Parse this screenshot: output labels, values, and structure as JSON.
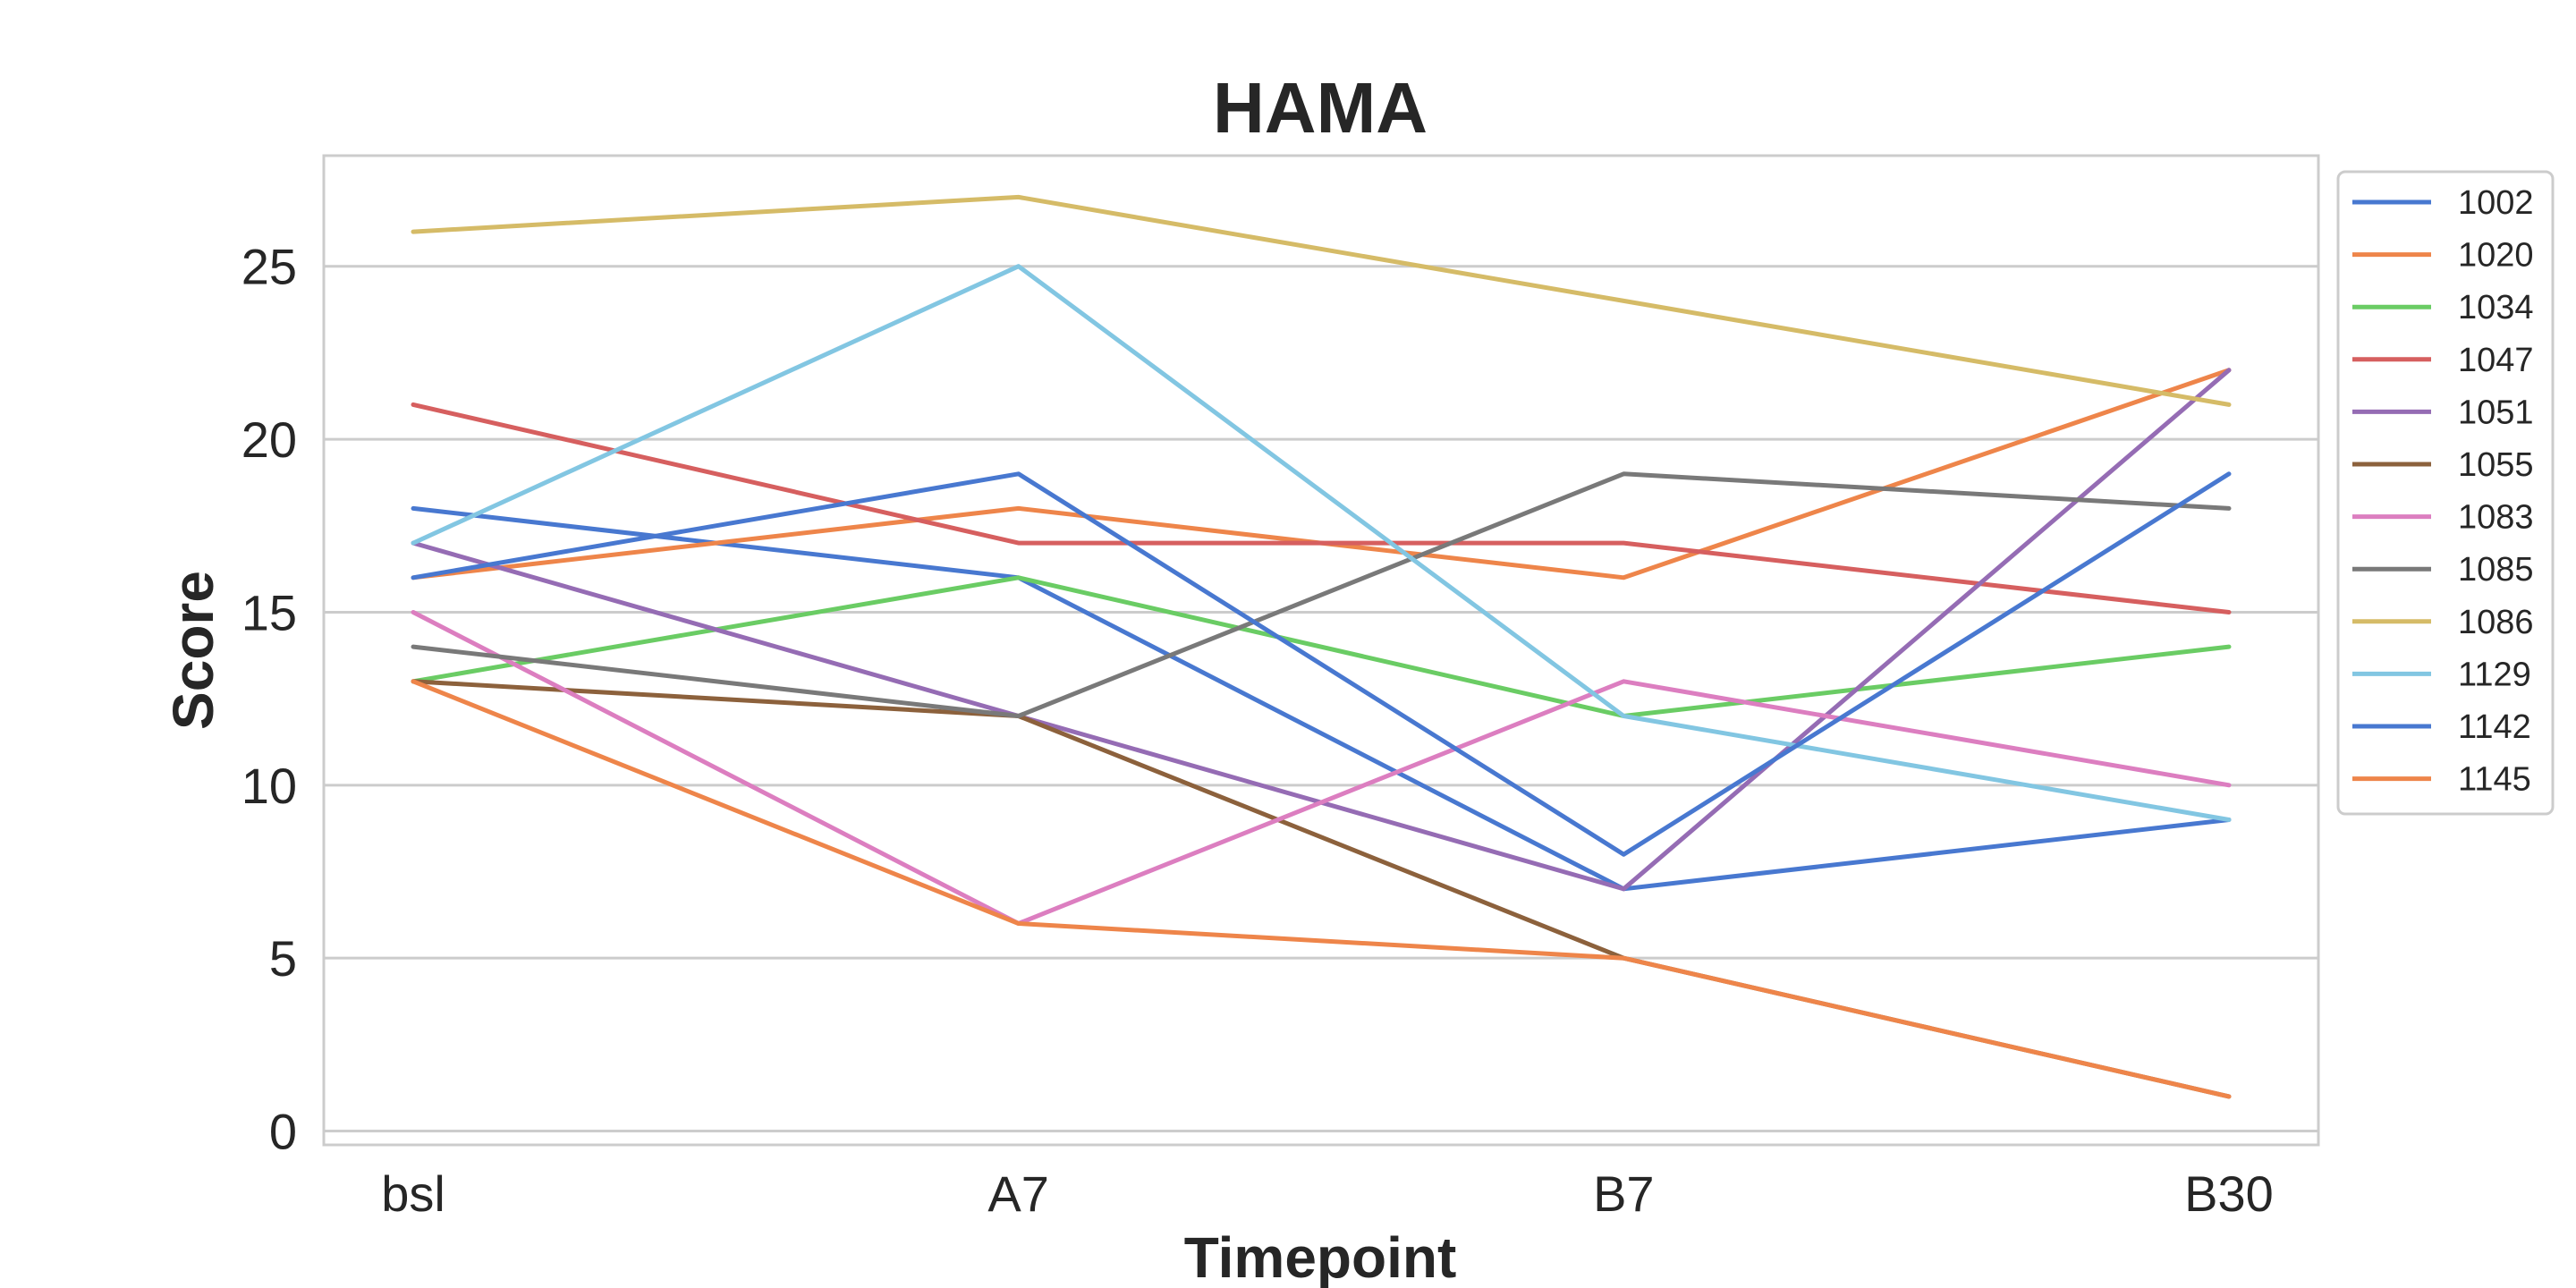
{
  "chart_data": {
    "type": "line",
    "title": "HAMA",
    "xlabel": "Timepoint",
    "ylabel": "Score",
    "categories": [
      "bsl",
      "A7",
      "B7",
      "B30"
    ],
    "ylim": [
      -0.4,
      28.2
    ],
    "yticks": [
      0,
      5,
      10,
      15,
      20,
      25
    ],
    "grid": true,
    "legend_position": "outside-right",
    "series": [
      {
        "name": "1002",
        "color": "#4878d0",
        "values": [
          18,
          16,
          7,
          9
        ]
      },
      {
        "name": "1020",
        "color": "#ee854a",
        "values": [
          16,
          18,
          16,
          22
        ]
      },
      {
        "name": "1034",
        "color": "#6acc64",
        "values": [
          13,
          16,
          12,
          14
        ]
      },
      {
        "name": "1047",
        "color": "#d65f5f",
        "values": [
          21,
          17,
          17,
          15
        ]
      },
      {
        "name": "1051",
        "color": "#956cb4",
        "values": [
          17,
          12,
          7,
          22
        ]
      },
      {
        "name": "1055",
        "color": "#8c613c",
        "values": [
          13,
          12,
          5,
          1
        ]
      },
      {
        "name": "1083",
        "color": "#dc7ec0",
        "values": [
          15,
          6,
          13,
          10
        ]
      },
      {
        "name": "1085",
        "color": "#797979",
        "values": [
          14,
          12,
          19,
          18
        ]
      },
      {
        "name": "1086",
        "color": "#d5bb67",
        "values": [
          26,
          27,
          24,
          21
        ]
      },
      {
        "name": "1129",
        "color": "#82c6e2",
        "values": [
          17,
          25,
          12,
          9
        ]
      },
      {
        "name": "1142",
        "color": "#4878d0",
        "values": [
          16,
          19,
          8,
          19
        ]
      },
      {
        "name": "1145",
        "color": "#ee854a",
        "values": [
          13,
          6,
          5,
          1
        ]
      }
    ]
  }
}
